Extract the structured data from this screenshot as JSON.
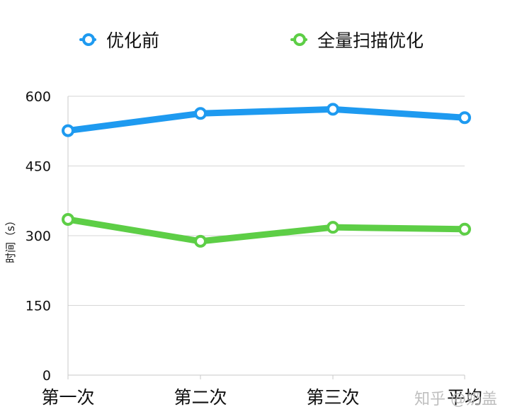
{
  "chart_data": {
    "type": "line",
    "categories": [
      "第一次",
      "第二次",
      "第三次",
      "平均"
    ],
    "series": [
      {
        "name": "优化前",
        "color": "#1E9AF0",
        "values": [
          526,
          563,
          572,
          554
        ]
      },
      {
        "name": "全量扫描优化",
        "color": "#5DCE46",
        "values": [
          335,
          288,
          318,
          314
        ]
      }
    ],
    "ylabel": "时间（s）",
    "ylim": [
      0,
      600
    ],
    "yticks": [
      0,
      150,
      300,
      450,
      600
    ],
    "grid": true,
    "legend_position": "top"
  },
  "watermark": "知乎 @奶盖"
}
